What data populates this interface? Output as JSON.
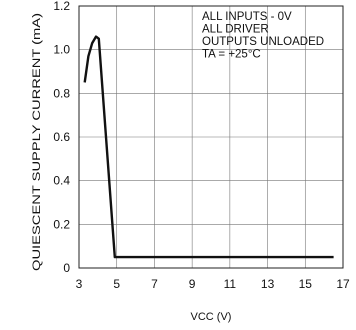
{
  "chart_data": {
    "type": "line",
    "xlabel": "VCC (V)",
    "ylabel": "QUIESCENT SUPPLY CURRENT (mA)",
    "xlim": [
      3,
      17
    ],
    "ylim": [
      0,
      1.2
    ],
    "x_ticks": [
      3,
      5,
      7,
      9,
      11,
      13,
      15,
      17
    ],
    "x_tick_labels": [
      "3",
      "5",
      "7",
      "9",
      "11",
      "13",
      "15",
      "17"
    ],
    "y_ticks": [
      0,
      0.2,
      0.4,
      0.6,
      0.8,
      1.0,
      1.2
    ],
    "y_tick_labels": [
      "0",
      "0.2",
      "0.4",
      "0.6",
      "0.8",
      "1.0",
      "1.2"
    ],
    "grid": true,
    "annotation_lines": [
      "ALL INPUTS - 0V",
      "ALL DRIVER",
      "OUTPUTS UNLOADED",
      "TA = +25°C"
    ],
    "series": [
      {
        "x": [
          3.3,
          3.5,
          3.7,
          3.9,
          4.05,
          4.9,
          5.0,
          16.5
        ],
        "y": [
          0.85,
          0.97,
          1.03,
          1.06,
          1.05,
          0.05,
          0.05,
          0.05
        ]
      }
    ]
  }
}
